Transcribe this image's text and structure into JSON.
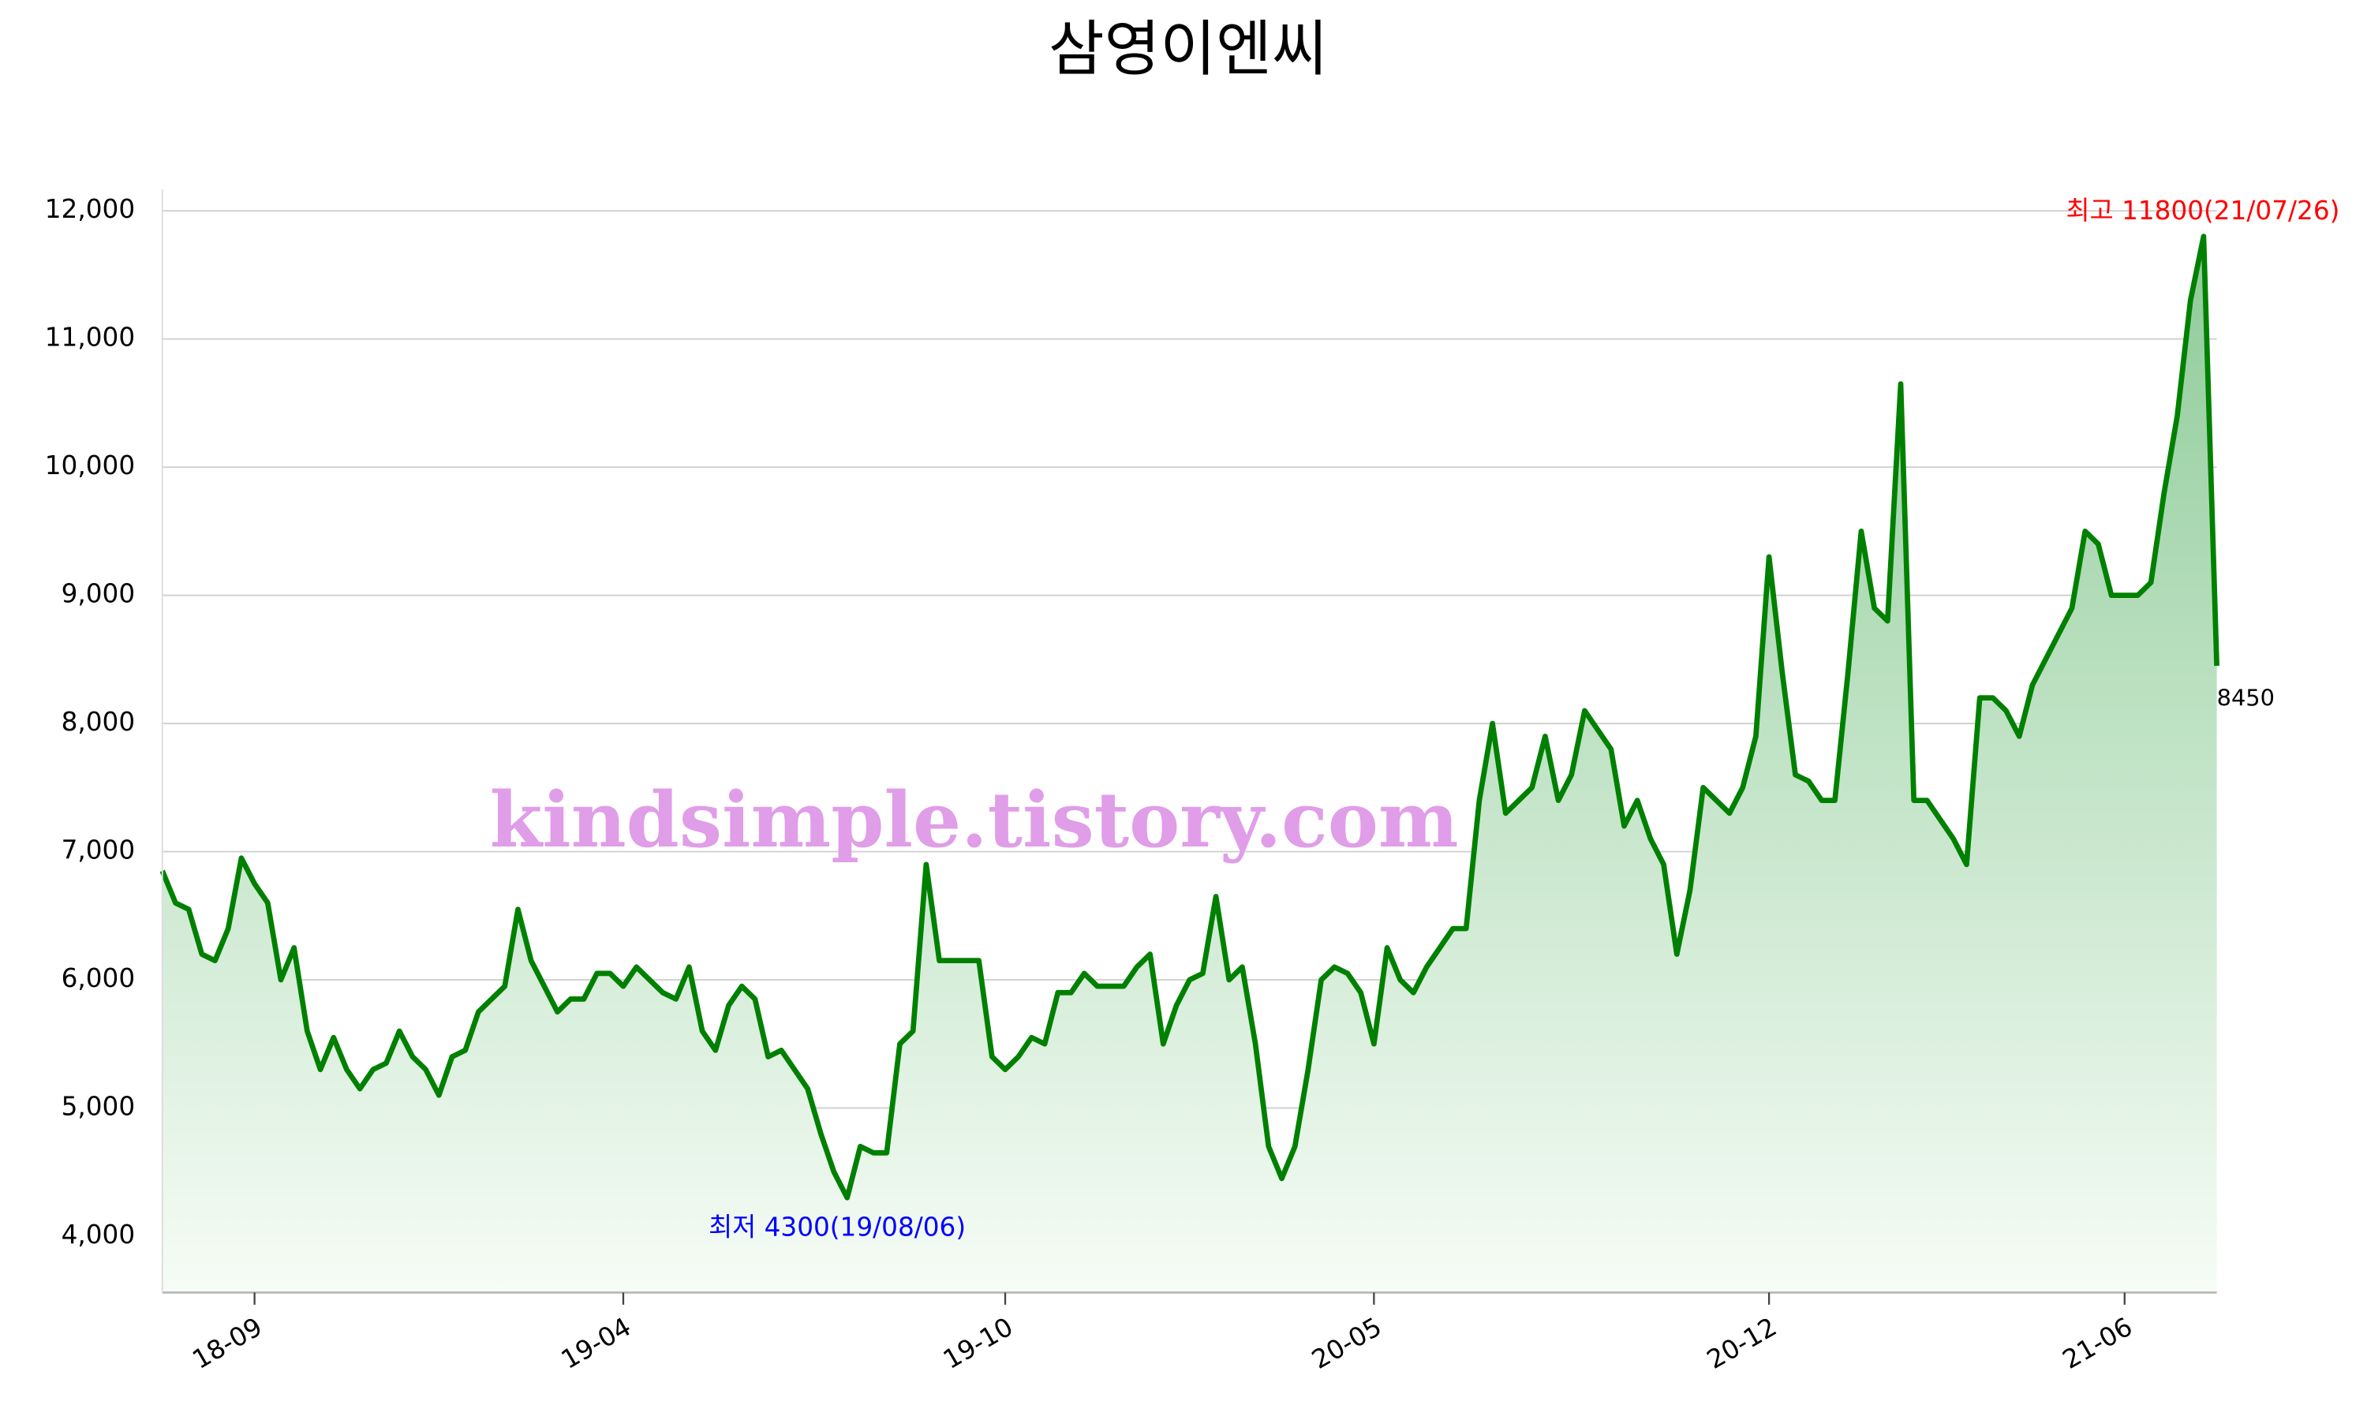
{
  "chart_data": {
    "type": "line",
    "title": "삼영이엔씨",
    "x": [
      "18/08/06",
      "18/08/13",
      "18/08/20",
      "18/08/27",
      "18/09/03",
      "18/09/10",
      "18/09/17",
      "18/09/24",
      "18/10/01",
      "18/10/08",
      "18/10/15",
      "18/10/22",
      "18/10/29",
      "18/11/05",
      "18/11/12",
      "18/11/19",
      "18/11/26",
      "18/12/03",
      "18/12/10",
      "18/12/17",
      "18/12/24",
      "18/12/31",
      "19/01/07",
      "19/01/14",
      "19/01/21",
      "19/01/28",
      "19/02/04",
      "19/02/11",
      "19/02/18",
      "19/02/25",
      "19/03/04",
      "19/03/11",
      "19/03/18",
      "19/03/25",
      "19/04/01",
      "19/04/08",
      "19/04/15",
      "19/04/22",
      "19/04/29",
      "19/05/06",
      "19/05/13",
      "19/05/20",
      "19/05/27",
      "19/06/03",
      "19/06/10",
      "19/06/17",
      "19/06/24",
      "19/07/01",
      "19/07/08",
      "19/07/15",
      "19/07/22",
      "19/07/29",
      "19/08/06",
      "19/08/12",
      "19/08/19",
      "19/08/26",
      "19/09/02",
      "19/09/09",
      "19/09/16",
      "19/09/23",
      "19/09/30",
      "19/10/07",
      "19/10/14",
      "19/10/21",
      "19/10/28",
      "19/11/04",
      "19/11/11",
      "19/11/18",
      "19/11/25",
      "19/12/02",
      "19/12/09",
      "19/12/16",
      "19/12/23",
      "19/12/30",
      "20/01/06",
      "20/01/13",
      "20/01/20",
      "20/01/27",
      "20/02/03",
      "20/02/10",
      "20/02/17",
      "20/02/24",
      "20/03/02",
      "20/03/09",
      "20/03/16",
      "20/03/23",
      "20/03/30",
      "20/04/06",
      "20/04/13",
      "20/04/20",
      "20/04/27",
      "20/05/04",
      "20/05/11",
      "20/05/18",
      "20/05/25",
      "20/06/01",
      "20/06/08",
      "20/06/15",
      "20/06/22",
      "20/06/29",
      "20/07/06",
      "20/07/13",
      "20/07/20",
      "20/07/27",
      "20/08/03",
      "20/08/10",
      "20/08/17",
      "20/08/24",
      "20/08/31",
      "20/09/07",
      "20/09/14",
      "20/09/21",
      "20/09/28",
      "20/10/05",
      "20/10/12",
      "20/10/19",
      "20/10/26",
      "20/11/02",
      "20/11/09",
      "20/11/16",
      "20/11/23",
      "20/11/30",
      "20/12/07",
      "20/12/14",
      "20/12/21",
      "20/12/28",
      "21/01/04",
      "21/01/11",
      "21/01/18",
      "21/01/25",
      "21/02/01",
      "21/02/08",
      "21/02/15",
      "21/02/22",
      "21/03/01",
      "21/03/08",
      "21/03/15",
      "21/03/22",
      "21/03/29",
      "21/04/05",
      "21/04/12",
      "21/04/19",
      "21/04/26",
      "21/05/03",
      "21/05/10",
      "21/05/17",
      "21/05/24",
      "21/05/31",
      "21/06/07",
      "21/06/14",
      "21/06/21",
      "21/06/28",
      "21/07/05",
      "21/07/12",
      "21/07/19",
      "21/07/26",
      "21/08/02"
    ],
    "series": [
      {
        "color": "#008000",
        "values": [
          6850,
          6600,
          6550,
          6200,
          6150,
          6400,
          6950,
          6750,
          6600,
          6000,
          6250,
          5600,
          5300,
          5550,
          5300,
          5150,
          5300,
          5350,
          5600,
          5400,
          5300,
          5100,
          5400,
          5450,
          5750,
          5850,
          5950,
          6550,
          6150,
          5950,
          5750,
          5850,
          5850,
          6050,
          6050,
          5950,
          6100,
          6000,
          5900,
          5850,
          6100,
          5600,
          5450,
          5800,
          5950,
          5850,
          5400,
          5450,
          5300,
          5150,
          4800,
          4500,
          4300,
          4700,
          4650,
          4650,
          5500,
          5600,
          6900,
          6150,
          6150,
          6150,
          6150,
          5400,
          5300,
          5400,
          5550,
          5500,
          5900,
          5900,
          6050,
          5950,
          5950,
          5950,
          6100,
          6200,
          5500,
          5800,
          6000,
          6050,
          6650,
          6000,
          6100,
          5500,
          4700,
          4450,
          4700,
          5300,
          6000,
          6100,
          6050,
          5900,
          5500,
          6250,
          6000,
          5900,
          6100,
          6250,
          6400,
          6400,
          7400,
          8000,
          7300,
          7400,
          7500,
          7900,
          7400,
          7600,
          8100,
          7950,
          7800,
          7200,
          7400,
          7100,
          6900,
          6200,
          6700,
          7500,
          7400,
          7300,
          7500,
          7900,
          9300,
          8400,
          7600,
          7550,
          7400,
          7400,
          8400,
          9500,
          8900,
          8800,
          10650,
          7400,
          7400,
          7250,
          7100,
          6900,
          8200,
          8200,
          8100,
          7900,
          8300,
          8500,
          8700,
          8900,
          9500,
          9400,
          9000,
          9000,
          9000,
          9100,
          9800,
          10400,
          11300,
          11800,
          8450
        ]
      }
    ],
    "ylim": [
      3560,
      12170
    ],
    "yticks": [
      {
        "value": 4000,
        "label": "4,000"
      },
      {
        "value": 5000,
        "label": "5,000"
      },
      {
        "value": 6000,
        "label": "6,000"
      },
      {
        "value": 7000,
        "label": "7,000"
      },
      {
        "value": 8000,
        "label": "8,000"
      },
      {
        "value": 9000,
        "label": "9,000"
      },
      {
        "value": 10000,
        "label": "10,000"
      },
      {
        "value": 11000,
        "label": "11,000"
      },
      {
        "value": 12000,
        "label": "12,000"
      }
    ],
    "xticks": [
      {
        "value": "18/09/24",
        "label": "18-09"
      },
      {
        "value": "19/04/08",
        "label": "19-04"
      },
      {
        "value": "19/10/28",
        "label": "19-10"
      },
      {
        "value": "20/05/11",
        "label": "20-05"
      },
      {
        "value": "20/12/07",
        "label": "20-12"
      },
      {
        "value": "21/06/14",
        "label": "21-06"
      }
    ],
    "grid": true,
    "annotations": [
      {
        "text": "최고 11800(21/07/26)",
        "color": "#ff0000"
      },
      {
        "text": "최저 4300(19/08/06)",
        "color": "#0000ff"
      },
      {
        "text": "8450",
        "color": "#000000"
      },
      {
        "text": "kindsimple.tistory.com",
        "color": "#e09de8"
      }
    ]
  }
}
